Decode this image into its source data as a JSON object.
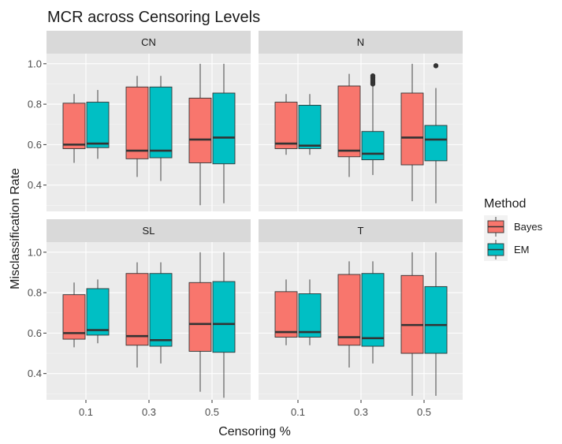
{
  "chart_data": {
    "type": "boxplot",
    "title": "MCR across Censoring Levels",
    "xlabel": "Censoring %",
    "ylabel": "Misclassification Rate",
    "categories": [
      "0.1",
      "0.3",
      "0.5"
    ],
    "yticks": [
      "0.4",
      "0.6",
      "0.8",
      "1.0"
    ],
    "ylim": [
      0.27,
      1.05
    ],
    "legend": {
      "title": "Method",
      "position": "right",
      "items": [
        {
          "name": "Bayes",
          "color": "#F8766D"
        },
        {
          "name": "EM",
          "color": "#00BFC4"
        }
      ]
    },
    "panels": [
      {
        "name": "CN",
        "series": [
          {
            "name": "Bayes",
            "boxes": [
              {
                "min": 0.51,
                "q1": 0.58,
                "median": 0.6,
                "q3": 0.805,
                "max": 0.85,
                "outliers": []
              },
              {
                "min": 0.44,
                "q1": 0.53,
                "median": 0.57,
                "q3": 0.885,
                "max": 0.94,
                "outliers": []
              },
              {
                "min": 0.3,
                "q1": 0.51,
                "median": 0.625,
                "q3": 0.83,
                "max": 1.0,
                "outliers": []
              }
            ]
          },
          {
            "name": "EM",
            "boxes": [
              {
                "min": 0.53,
                "q1": 0.585,
                "median": 0.605,
                "q3": 0.81,
                "max": 0.87,
                "outliers": []
              },
              {
                "min": 0.42,
                "q1": 0.535,
                "median": 0.57,
                "q3": 0.885,
                "max": 0.94,
                "outliers": []
              },
              {
                "min": 0.31,
                "q1": 0.505,
                "median": 0.635,
                "q3": 0.855,
                "max": 1.0,
                "outliers": []
              }
            ]
          }
        ]
      },
      {
        "name": "N",
        "series": [
          {
            "name": "Bayes",
            "boxes": [
              {
                "min": 0.55,
                "q1": 0.58,
                "median": 0.605,
                "q3": 0.81,
                "max": 0.85,
                "outliers": []
              },
              {
                "min": 0.44,
                "q1": 0.54,
                "median": 0.57,
                "q3": 0.89,
                "max": 0.95,
                "outliers": []
              },
              {
                "min": 0.32,
                "q1": 0.5,
                "median": 0.635,
                "q3": 0.855,
                "max": 1.0,
                "outliers": []
              }
            ]
          },
          {
            "name": "EM",
            "boxes": [
              {
                "min": 0.55,
                "q1": 0.58,
                "median": 0.595,
                "q3": 0.795,
                "max": 0.85,
                "outliers": []
              },
              {
                "min": 0.45,
                "q1": 0.525,
                "median": 0.555,
                "q3": 0.665,
                "max": 0.89,
                "outliers": [
                  0.9,
                  0.91,
                  0.92,
                  0.93,
                  0.94
                ]
              },
              {
                "min": 0.31,
                "q1": 0.52,
                "median": 0.625,
                "q3": 0.695,
                "max": 0.88,
                "outliers": [
                  0.99
                ]
              }
            ]
          }
        ]
      },
      {
        "name": "SL",
        "series": [
          {
            "name": "Bayes",
            "boxes": [
              {
                "min": 0.53,
                "q1": 0.57,
                "median": 0.6,
                "q3": 0.79,
                "max": 0.85,
                "outliers": []
              },
              {
                "min": 0.43,
                "q1": 0.54,
                "median": 0.585,
                "q3": 0.895,
                "max": 0.95,
                "outliers": []
              },
              {
                "min": 0.31,
                "q1": 0.51,
                "median": 0.645,
                "q3": 0.85,
                "max": 1.0,
                "outliers": []
              }
            ]
          },
          {
            "name": "EM",
            "boxes": [
              {
                "min": 0.55,
                "q1": 0.59,
                "median": 0.615,
                "q3": 0.82,
                "max": 0.865,
                "outliers": []
              },
              {
                "min": 0.45,
                "q1": 0.535,
                "median": 0.565,
                "q3": 0.895,
                "max": 0.95,
                "outliers": []
              },
              {
                "min": 0.28,
                "q1": 0.505,
                "median": 0.645,
                "q3": 0.855,
                "max": 1.0,
                "outliers": []
              }
            ]
          }
        ]
      },
      {
        "name": "T",
        "series": [
          {
            "name": "Bayes",
            "boxes": [
              {
                "min": 0.54,
                "q1": 0.58,
                "median": 0.605,
                "q3": 0.805,
                "max": 0.865,
                "outliers": []
              },
              {
                "min": 0.43,
                "q1": 0.54,
                "median": 0.58,
                "q3": 0.89,
                "max": 0.955,
                "outliers": []
              },
              {
                "min": 0.29,
                "q1": 0.5,
                "median": 0.64,
                "q3": 0.885,
                "max": 1.0,
                "outliers": []
              }
            ]
          },
          {
            "name": "EM",
            "boxes": [
              {
                "min": 0.54,
                "q1": 0.58,
                "median": 0.605,
                "q3": 0.795,
                "max": 0.865,
                "outliers": []
              },
              {
                "min": 0.45,
                "q1": 0.535,
                "median": 0.575,
                "q3": 0.895,
                "max": 0.955,
                "outliers": []
              },
              {
                "min": 0.29,
                "q1": 0.5,
                "median": 0.64,
                "q3": 0.83,
                "max": 1.0,
                "outliers": []
              }
            ]
          }
        ]
      }
    ]
  }
}
